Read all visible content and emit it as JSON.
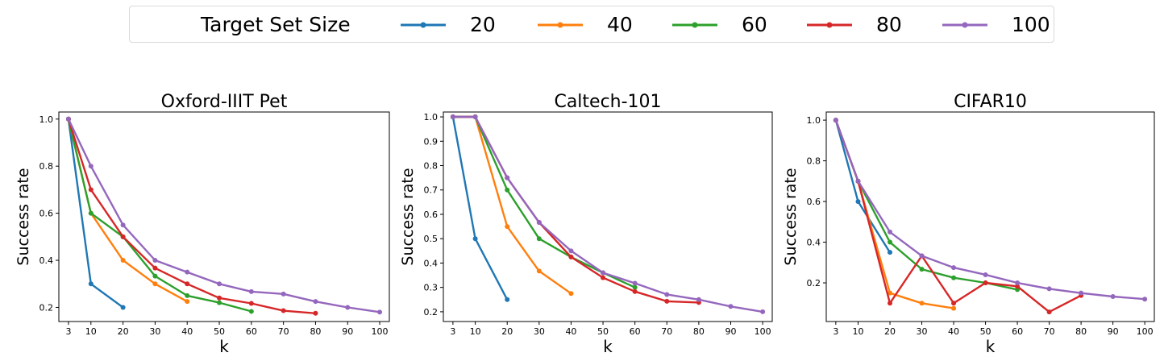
{
  "legend": {
    "title": "Target Set Size",
    "entries": [
      "20",
      "40",
      "60",
      "80",
      "100"
    ]
  },
  "colors": {
    "20": "#1f77b4",
    "40": "#ff7f0e",
    "60": "#2ca02c",
    "80": "#d62728",
    "100": "#9467bd"
  },
  "chart_data": [
    {
      "type": "line",
      "title": "Oxford-IIIT Pet",
      "xlabel": "k",
      "ylabel": "Success rate",
      "xticks": [
        3,
        10,
        20,
        30,
        40,
        50,
        60,
        70,
        80,
        90,
        100
      ],
      "yticks": [
        0.2,
        0.4,
        0.6,
        0.8,
        1.0
      ],
      "ylim": [
        0.14,
        1.03
      ],
      "xlim": [
        0,
        103
      ],
      "series": [
        {
          "name": "20",
          "x": [
            3,
            10,
            20
          ],
          "y": [
            1.0,
            0.3,
            0.2
          ]
        },
        {
          "name": "40",
          "x": [
            3,
            10,
            20,
            30,
            40
          ],
          "y": [
            1.0,
            0.6,
            0.4,
            0.3,
            0.225
          ]
        },
        {
          "name": "60",
          "x": [
            3,
            10,
            20,
            30,
            40,
            50,
            60
          ],
          "y": [
            1.0,
            0.6,
            0.5,
            0.333,
            0.25,
            0.22,
            0.183
          ]
        },
        {
          "name": "80",
          "x": [
            3,
            10,
            20,
            30,
            40,
            50,
            60,
            70,
            80
          ],
          "y": [
            1.0,
            0.7,
            0.5,
            0.367,
            0.3,
            0.24,
            0.217,
            0.186,
            0.175
          ]
        },
        {
          "name": "100",
          "x": [
            3,
            10,
            20,
            30,
            40,
            50,
            60,
            70,
            80,
            90,
            100
          ],
          "y": [
            1.0,
            0.8,
            0.55,
            0.4,
            0.35,
            0.3,
            0.267,
            0.257,
            0.225,
            0.2,
            0.18
          ]
        }
      ]
    },
    {
      "type": "line",
      "title": "Caltech-101",
      "xlabel": "k",
      "ylabel": "Success rate",
      "xticks": [
        3,
        10,
        20,
        30,
        40,
        50,
        60,
        70,
        80,
        90,
        100
      ],
      "yticks": [
        0.2,
        0.3,
        0.4,
        0.5,
        0.6,
        0.7,
        0.8,
        0.9,
        1.0
      ],
      "ylim": [
        0.16,
        1.02
      ],
      "xlim": [
        0,
        103
      ],
      "series": [
        {
          "name": "20",
          "x": [
            3,
            10,
            20
          ],
          "y": [
            1.0,
            0.5,
            0.25
          ]
        },
        {
          "name": "40",
          "x": [
            3,
            10,
            20,
            30,
            40
          ],
          "y": [
            1.0,
            1.0,
            0.55,
            0.367,
            0.275
          ]
        },
        {
          "name": "60",
          "x": [
            3,
            10,
            20,
            30,
            40,
            50,
            60
          ],
          "y": [
            1.0,
            1.0,
            0.7,
            0.5,
            0.425,
            0.36,
            0.3
          ]
        },
        {
          "name": "80",
          "x": [
            3,
            10,
            20,
            30,
            40,
            50,
            60,
            70,
            80
          ],
          "y": [
            1.0,
            1.0,
            0.75,
            0.567,
            0.425,
            0.34,
            0.283,
            0.243,
            0.238
          ]
        },
        {
          "name": "100",
          "x": [
            3,
            10,
            20,
            30,
            40,
            50,
            60,
            70,
            80,
            90,
            100
          ],
          "y": [
            1.0,
            1.0,
            0.75,
            0.567,
            0.45,
            0.36,
            0.317,
            0.271,
            0.25,
            0.222,
            0.2
          ]
        }
      ]
    },
    {
      "type": "line",
      "title": "CIFAR10",
      "xlabel": "k",
      "ylabel": "Success rate",
      "xticks": [
        3,
        10,
        20,
        30,
        40,
        50,
        60,
        70,
        80,
        90,
        100
      ],
      "yticks": [
        0.2,
        0.4,
        0.6,
        0.8,
        1.0
      ],
      "ylim": [
        0.01,
        1.04
      ],
      "xlim": [
        0,
        103
      ],
      "series": [
        {
          "name": "20",
          "x": [
            3,
            10,
            20
          ],
          "y": [
            1.0,
            0.6,
            0.35
          ]
        },
        {
          "name": "40",
          "x": [
            3,
            10,
            20,
            30,
            40
          ],
          "y": [
            1.0,
            0.7,
            0.15,
            0.1,
            0.075
          ]
        },
        {
          "name": "60",
          "x": [
            3,
            10,
            20,
            30,
            40,
            50,
            60
          ],
          "y": [
            1.0,
            0.7,
            0.4,
            0.267,
            0.225,
            0.2,
            0.167
          ]
        },
        {
          "name": "80",
          "x": [
            3,
            10,
            20,
            30,
            40,
            50,
            60,
            70,
            80
          ],
          "y": [
            1.0,
            0.7,
            0.1,
            0.333,
            0.1,
            0.2,
            0.183,
            0.057,
            0.138
          ]
        },
        {
          "name": "100",
          "x": [
            3,
            10,
            20,
            30,
            40,
            50,
            60,
            70,
            80,
            90,
            100
          ],
          "y": [
            1.0,
            0.7,
            0.45,
            0.333,
            0.275,
            0.24,
            0.2,
            0.171,
            0.15,
            0.133,
            0.12
          ]
        }
      ]
    }
  ]
}
